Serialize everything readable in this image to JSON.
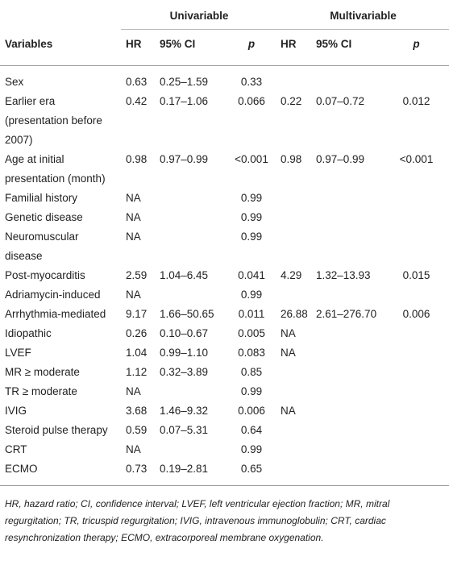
{
  "table": {
    "groups": [
      "Univariable",
      "Multivariable"
    ],
    "columns": [
      "Variables",
      "HR",
      "95% CI",
      "p",
      "HR",
      "95% CI",
      "p"
    ],
    "rows": [
      [
        "Sex",
        "0.63",
        "0.25–1.59",
        "0.33",
        null,
        null,
        null
      ],
      [
        "Earlier era (presentation before 2007)",
        "0.42",
        "0.17–1.06",
        "0.066",
        "0.22",
        "0.07–0.72",
        "0.012"
      ],
      [
        "Age at initial presentation (month)",
        "0.98",
        "0.97–0.99",
        "<0.001",
        "0.98",
        "0.97–0.99",
        "<0.001"
      ],
      [
        "Familial history",
        "NA",
        null,
        "0.99",
        null,
        null,
        null
      ],
      [
        "Genetic disease",
        "NA",
        null,
        "0.99",
        null,
        null,
        null
      ],
      [
        "Neuromuscular disease",
        "NA",
        null,
        "0.99",
        null,
        null,
        null
      ],
      [
        "Post-myocarditis",
        "2.59",
        "1.04–6.45",
        "0.041",
        "4.29",
        "1.32–13.93",
        "0.015"
      ],
      [
        "Adriamycin-induced",
        "NA",
        null,
        "0.99",
        null,
        null,
        null
      ],
      [
        "Arrhythmia-mediated",
        "9.17",
        "1.66–50.65",
        "0.011",
        "26.88",
        "2.61–276.70",
        "0.006"
      ],
      [
        "Idiopathic",
        "0.26",
        "0.10–0.67",
        "0.005",
        "NA",
        null,
        null
      ],
      [
        "LVEF",
        "1.04",
        "0.99–1.10",
        "0.083",
        "NA",
        null,
        null
      ],
      [
        "MR ≥ moderate",
        "1.12",
        "0.32–3.89",
        "0.85",
        null,
        null,
        null
      ],
      [
        "TR ≥ moderate",
        "NA",
        null,
        "0.99",
        null,
        null,
        null
      ],
      [
        "IVIG",
        "3.68",
        "1.46–9.32",
        "0.006",
        "NA",
        null,
        null
      ],
      [
        "Steroid pulse therapy",
        "0.59",
        "0.07–5.31",
        "0.64",
        null,
        null,
        null
      ],
      [
        "CRT",
        "NA",
        null,
        "0.99",
        null,
        null,
        null
      ],
      [
        "ECMO",
        "0.73",
        "0.19–2.81",
        "0.65",
        null,
        null,
        null
      ]
    ],
    "footnote": "HR, hazard ratio; CI, confidence interval; LVEF, left ventricular ejection fraction; MR, mitral regurgitation; TR, tricuspid regurgitation; IVIG, intravenous immunoglobulin; CRT, cardiac resynchronization therapy; ECMO, extracorporeal membrane oxygenation."
  }
}
